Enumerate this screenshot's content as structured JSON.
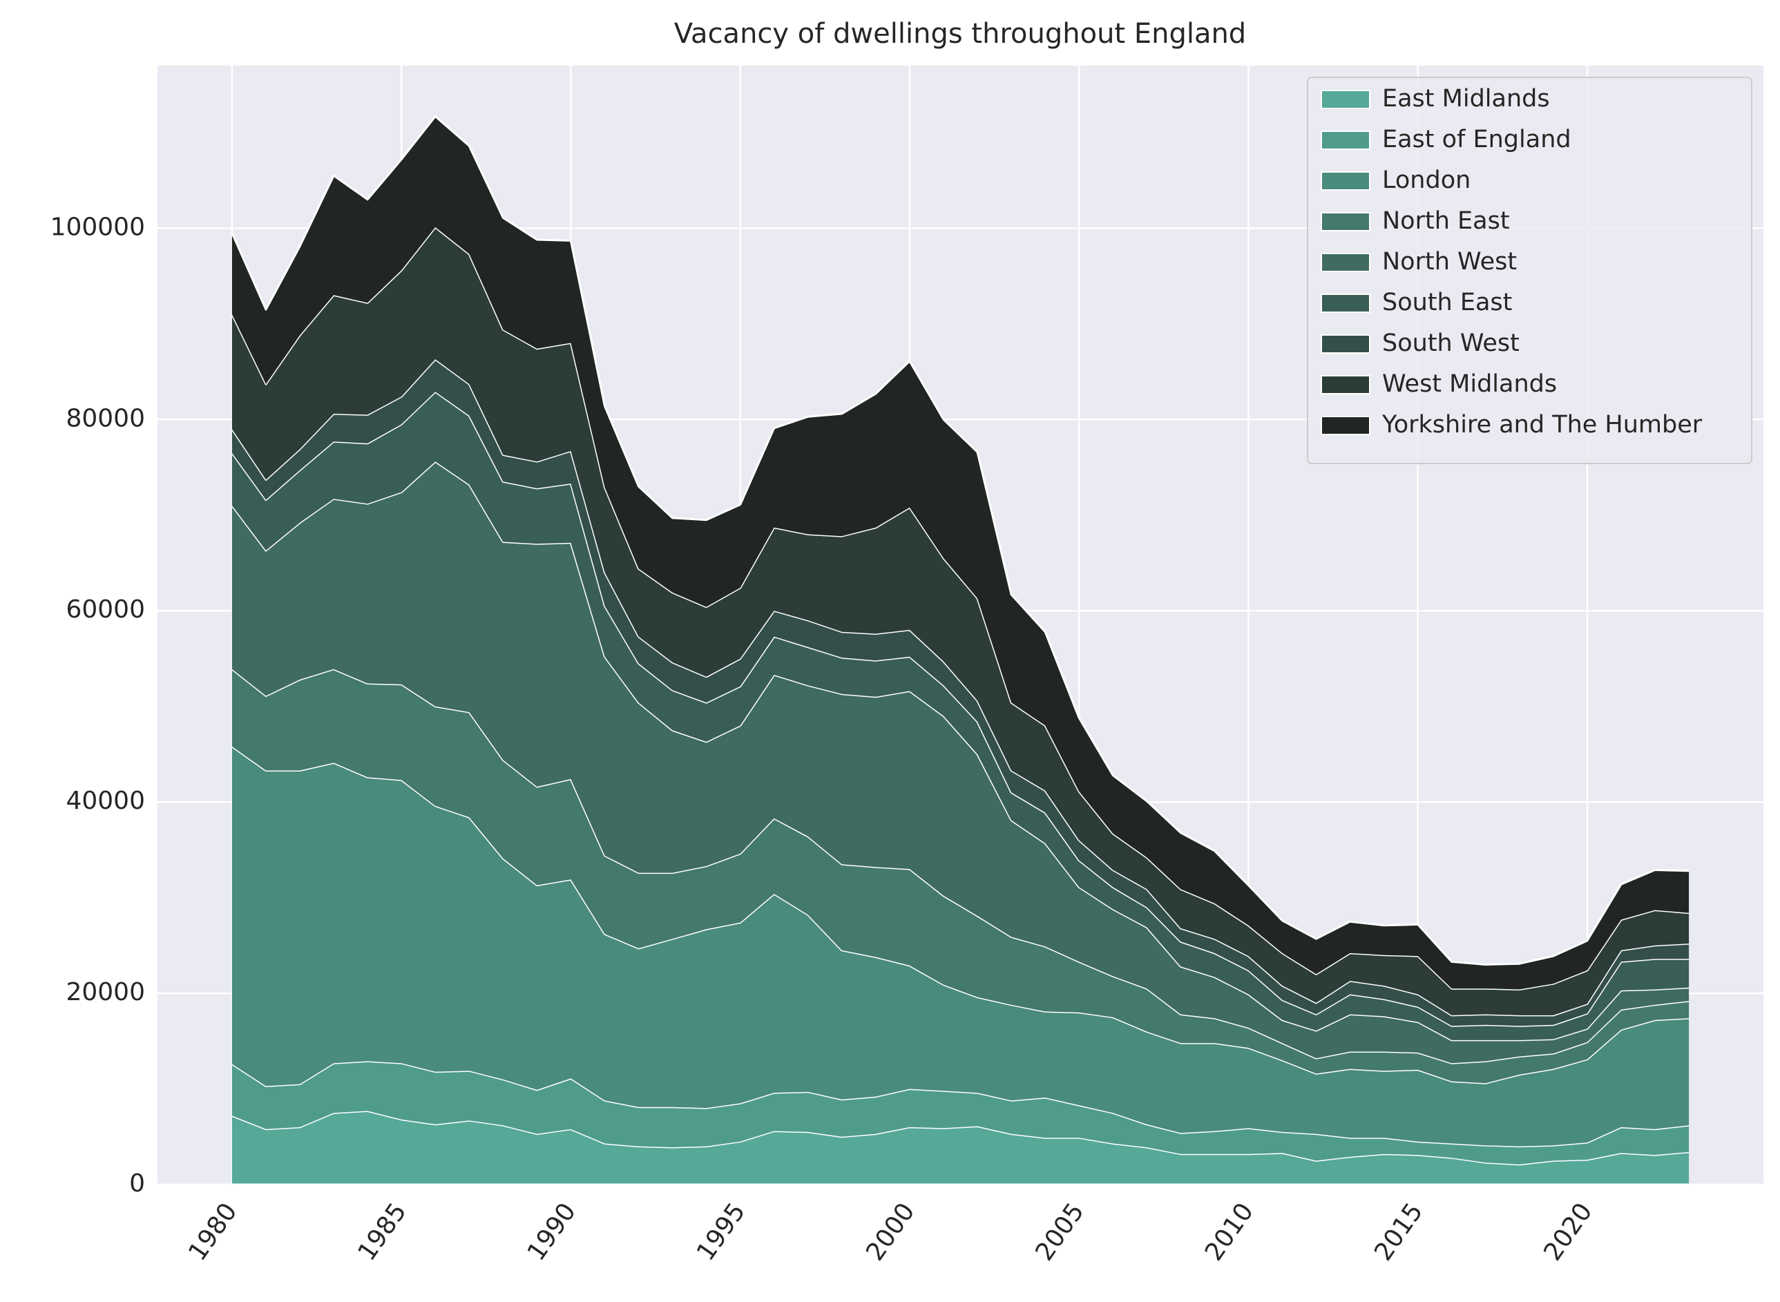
{
  "chart_data": {
    "type": "area",
    "stacked": true,
    "title": "Vacancy of dwellings throughout England",
    "xlabel": "",
    "ylabel": "",
    "x": [
      1980,
      1981,
      1982,
      1983,
      1984,
      1985,
      1986,
      1987,
      1988,
      1989,
      1990,
      1991,
      1992,
      1993,
      1994,
      1995,
      1996,
      1997,
      1998,
      1999,
      2000,
      2001,
      2002,
      2003,
      2004,
      2005,
      2006,
      2007,
      2008,
      2009,
      2010,
      2011,
      2012,
      2013,
      2014,
      2015,
      2016,
      2017,
      2018,
      2019,
      2020,
      2021,
      2022,
      2023
    ],
    "xlim": [
      1977.8,
      2025.2
    ],
    "ylim": [
      0,
      117000
    ],
    "xticks": [
      1980,
      1985,
      1990,
      1995,
      2000,
      2005,
      2010,
      2015,
      2020
    ],
    "yticks": [
      0,
      20000,
      40000,
      60000,
      80000,
      100000
    ],
    "grid": true,
    "legend_position": "top-right",
    "series": [
      {
        "name": "East Midlands",
        "color": "#56a899",
        "values": [
          7200,
          5800,
          6000,
          7500,
          7700,
          6800,
          6300,
          6700,
          6200,
          5300,
          5800,
          4300,
          4000,
          3900,
          4000,
          4500,
          5600,
          5500,
          5000,
          5300,
          6000,
          5900,
          6100,
          5300,
          4900,
          4900,
          4300,
          3900,
          3200,
          3200,
          3200,
          3300,
          2500,
          2900,
          3200,
          3100,
          2800,
          2300,
          2100,
          2500,
          2600,
          3300,
          3100,
          3400
        ]
      },
      {
        "name": "East of England",
        "color": "#4f9c8d",
        "values": [
          5400,
          4500,
          4500,
          5200,
          5200,
          5900,
          5500,
          5200,
          4800,
          4600,
          5300,
          4500,
          4100,
          4200,
          4000,
          4000,
          4000,
          4200,
          3900,
          3900,
          4000,
          3900,
          3500,
          3500,
          4200,
          3400,
          3200,
          2400,
          2200,
          2400,
          2700,
          2200,
          2800,
          2000,
          1700,
          1400,
          1500,
          1800,
          1900,
          1600,
          1800,
          2700,
          2700,
          2800
        ]
      },
      {
        "name": "London",
        "color": "#498b7d",
        "values": [
          33200,
          33000,
          32800,
          31400,
          29700,
          29600,
          27800,
          26500,
          23100,
          21400,
          20800,
          17400,
          16600,
          17600,
          18700,
          18900,
          20800,
          18500,
          15600,
          14600,
          12900,
          11100,
          10000,
          10000,
          9000,
          9700,
          10000,
          9700,
          9400,
          9200,
          8400,
          7500,
          6300,
          7200,
          7000,
          7500,
          6500,
          6500,
          7500,
          8000,
          8700,
          10200,
          11400,
          11200
        ]
      },
      {
        "name": "North East",
        "color": "#44796d",
        "values": [
          8100,
          7800,
          9500,
          9800,
          9800,
          10000,
          10400,
          11000,
          10300,
          10300,
          10500,
          8200,
          7900,
          6900,
          6600,
          7200,
          7900,
          8200,
          9000,
          9400,
          10100,
          9300,
          8500,
          7100,
          6800,
          5300,
          4300,
          4500,
          3000,
          2600,
          2100,
          1800,
          1600,
          1800,
          2000,
          1800,
          1900,
          2300,
          1900,
          1600,
          1800,
          2100,
          1600,
          1800
        ]
      },
      {
        "name": "North West",
        "color": "#3f6b61",
        "values": [
          17100,
          15200,
          16400,
          17800,
          18800,
          20100,
          25600,
          23800,
          22800,
          25400,
          24700,
          20800,
          17800,
          14900,
          13000,
          13400,
          15000,
          15800,
          17800,
          17800,
          18600,
          18800,
          16900,
          12200,
          10800,
          7800,
          7000,
          6400,
          5000,
          4300,
          3500,
          2400,
          2900,
          3900,
          3700,
          3200,
          2400,
          2200,
          1700,
          1500,
          1400,
          2000,
          1600,
          1400
        ]
      },
      {
        "name": "South East",
        "color": "#395e55",
        "values": [
          5500,
          5300,
          5500,
          6000,
          6300,
          7100,
          7300,
          7200,
          6300,
          5800,
          6200,
          5300,
          4100,
          4200,
          4100,
          4100,
          4000,
          4000,
          3800,
          3800,
          3600,
          3200,
          3400,
          2900,
          3200,
          2800,
          2300,
          2100,
          2600,
          2500,
          2500,
          2100,
          1700,
          2100,
          1800,
          1600,
          1500,
          1600,
          1500,
          1500,
          1600,
          3000,
          3200,
          3000
        ]
      },
      {
        "name": "South West",
        "color": "#344f49",
        "values": [
          2500,
          2100,
          2200,
          2900,
          3000,
          2900,
          3400,
          3300,
          2800,
          2800,
          3400,
          3500,
          2800,
          2900,
          2700,
          2900,
          2700,
          2800,
          2700,
          2800,
          2800,
          2500,
          2200,
          2300,
          2300,
          2100,
          1800,
          1900,
          1400,
          1500,
          1500,
          1500,
          1200,
          1400,
          1400,
          1300,
          1100,
          1100,
          1100,
          1000,
          1000,
          1200,
          1400,
          1600
        ]
      },
      {
        "name": "West Midlands",
        "color": "#2c3c38",
        "values": [
          12000,
          10000,
          11900,
          12400,
          11700,
          13200,
          13800,
          13600,
          13100,
          11800,
          11300,
          8900,
          7100,
          7300,
          7300,
          7400,
          8700,
          9000,
          10000,
          11100,
          12800,
          10800,
          10700,
          7100,
          6800,
          5100,
          3800,
          3300,
          4100,
          3700,
          3200,
          3400,
          3000,
          2900,
          3200,
          4000,
          2800,
          2700,
          2700,
          3300,
          3500,
          3200,
          3700,
          3200
        ]
      },
      {
        "name": "Yorkshire and The Humber",
        "color": "#212624",
        "values": [
          8500,
          7800,
          9300,
          12500,
          10800,
          11600,
          11600,
          11300,
          11700,
          11400,
          10700,
          8500,
          8600,
          7800,
          9100,
          8700,
          10400,
          12300,
          12800,
          14000,
          15300,
          14500,
          15300,
          11300,
          9800,
          7700,
          6100,
          5900,
          5900,
          5500,
          4200,
          3400,
          3700,
          3300,
          3100,
          3300,
          2800,
          2500,
          2700,
          2900,
          3100,
          3700,
          4200,
          4400
        ]
      }
    ]
  }
}
